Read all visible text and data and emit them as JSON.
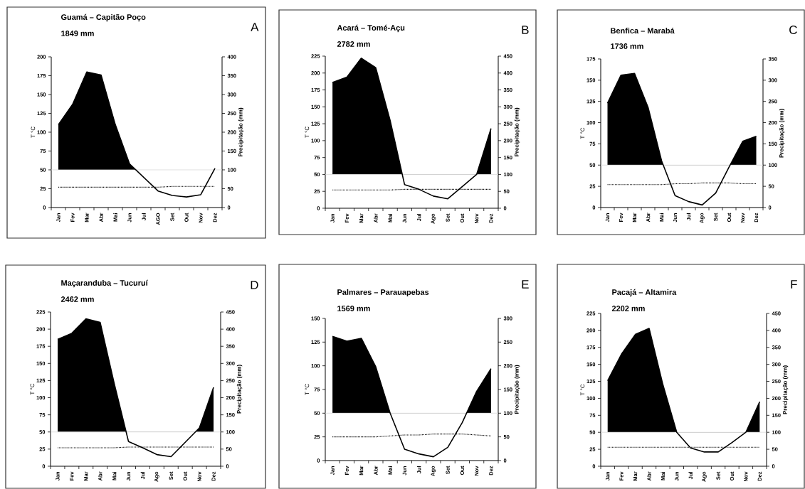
{
  "chart_data": [
    {
      "type": "line",
      "title": "Guamá – Capitão Poço",
      "subtitle": "1849 mm",
      "annotations": [
        "A"
      ],
      "ylabel": "T °C",
      "y2label": "Precipitação (mm)",
      "categories": [
        "Jan",
        "Fev",
        "Mar",
        "Abr",
        "Mai",
        "Jun",
        "Jul",
        "AGO",
        "Set",
        "Out",
        "Nov",
        "Dez"
      ],
      "ylim": [
        0,
        200
      ],
      "yticks": [
        0,
        25,
        50,
        75,
        100,
        125,
        150,
        175,
        200
      ],
      "y2lim": [
        0,
        400
      ],
      "y2ticks": [
        0,
        50,
        100,
        150,
        200,
        250,
        300,
        350,
        400
      ],
      "ref_lines": [
        {
          "axis": "y2",
          "value": 100,
          "color": "#d9d9d9"
        }
      ],
      "series": [
        {
          "type": "area",
          "axis": "y2",
          "color": "#000000",
          "values": [
            220,
            274,
            360,
            352,
            220,
            116,
            80,
            44,
            32,
            28,
            34,
            104
          ]
        },
        {
          "axis": "y",
          "color": "#000000",
          "line_style": "dotted",
          "values": [
            27,
            27,
            27,
            27,
            27,
            27,
            27,
            27,
            28,
            28,
            28,
            28
          ]
        }
      ]
    },
    {
      "type": "line",
      "title": "Acará – Tomé-Açu",
      "subtitle": "2782 mm",
      "annotations": [
        "B"
      ],
      "ylabel": "T °C",
      "y2label": "Precipitação (mm)",
      "categories": [
        "Jan",
        "Fev",
        "Mar",
        "Abr",
        "Mai",
        "Jun",
        "Jul",
        "Ago",
        "Set",
        "Out",
        "Nov",
        "Dez"
      ],
      "ylim": [
        0,
        225
      ],
      "yticks": [
        0,
        25,
        50,
        75,
        100,
        125,
        150,
        175,
        200,
        225
      ],
      "y2lim": [
        0,
        450
      ],
      "y2ticks": [
        0,
        50,
        100,
        150,
        200,
        250,
        300,
        350,
        400,
        450
      ],
      "ref_lines": [
        {
          "axis": "y2",
          "value": 100,
          "color": "#d9d9d9"
        }
      ],
      "series": [
        {
          "type": "area",
          "axis": "y2",
          "color": "#000000",
          "values": [
            372,
            388,
            444,
            416,
            260,
            70,
            56,
            36,
            28,
            64,
            100,
            236
          ]
        },
        {
          "axis": "y",
          "color": "#000000",
          "line_style": "dotted",
          "values": [
            27,
            27,
            27,
            27,
            27,
            28,
            28,
            28,
            28,
            28,
            28,
            28
          ]
        }
      ]
    },
    {
      "type": "line",
      "title": "Benfica – Marabá",
      "subtitle": "1736 mm",
      "annotations": [
        "C"
      ],
      "ylabel": "T °C",
      "y2label": "Precipitação (mm)",
      "categories": [
        "Jan",
        "Fev",
        "Mar",
        "Abr",
        "Mai",
        "Jun",
        "Jul",
        "Ago",
        "Set",
        "Out",
        "Nov",
        "Dez"
      ],
      "ylim": [
        0,
        175
      ],
      "yticks": [
        0,
        25,
        50,
        75,
        100,
        125,
        150,
        175
      ],
      "y2lim": [
        0,
        350
      ],
      "y2ticks": [
        0,
        50,
        100,
        150,
        200,
        250,
        300,
        350
      ],
      "ref_lines": [
        {
          "axis": "y2",
          "value": 100,
          "color": "#d9d9d9"
        }
      ],
      "series": [
        {
          "type": "area",
          "axis": "y2",
          "color": "#000000",
          "values": [
            246,
            312,
            316,
            236,
            110,
            28,
            14,
            6,
            34,
            96,
            156,
            168
          ]
        },
        {
          "axis": "y",
          "color": "#000000",
          "line_style": "dotted",
          "values": [
            27,
            27,
            27,
            27,
            27,
            28,
            28,
            29,
            29,
            29,
            28,
            28
          ]
        }
      ]
    },
    {
      "type": "line",
      "title": "Maçaranduba – Tucuruí",
      "subtitle": "2462 mm",
      "annotations": [
        "D"
      ],
      "ylabel": "T °C",
      "y2label": "Precipitação (mm)",
      "categories": [
        "Jan",
        "Fev",
        "Mar",
        "Abr",
        "Mai",
        "Jun",
        "Jul",
        "Ago",
        "Set",
        "Out",
        "Nov",
        "Dez"
      ],
      "ylim": [
        0,
        225
      ],
      "yticks": [
        0,
        25,
        50,
        75,
        100,
        125,
        150,
        175,
        200,
        225
      ],
      "y2lim": [
        0,
        450
      ],
      "y2ticks": [
        0,
        50,
        100,
        150,
        200,
        250,
        300,
        350,
        400,
        450
      ],
      "ref_lines": [
        {
          "axis": "y2",
          "value": 100,
          "color": "#d9d9d9"
        }
      ],
      "series": [
        {
          "type": "area",
          "axis": "y2",
          "color": "#000000",
          "values": [
            370,
            388,
            430,
            420,
            240,
            72,
            54,
            34,
            28,
            70,
            112,
            230
          ]
        },
        {
          "axis": "y",
          "color": "#000000",
          "line_style": "dotted",
          "values": [
            27,
            27,
            27,
            27,
            27,
            28,
            28,
            28,
            28,
            28,
            28,
            28
          ]
        }
      ]
    },
    {
      "type": "line",
      "title": "Palmares – Parauapebas",
      "subtitle": "1569 mm",
      "annotations": [
        "E"
      ],
      "ylabel": "T °C",
      "y2label": "Precipitação (mm)",
      "categories": [
        "Jan",
        "Fev",
        "Mar",
        "Abr",
        "Mai",
        "Jun",
        "Jul",
        "Ago",
        "Set",
        "Out",
        "Nov",
        "Dez"
      ],
      "ylim": [
        0,
        150
      ],
      "yticks": [
        0,
        25,
        50,
        75,
        100,
        125,
        150
      ],
      "y2lim": [
        0,
        300
      ],
      "y2ticks": [
        0,
        50,
        100,
        150,
        200,
        250,
        300
      ],
      "ref_lines": [
        {
          "axis": "y2",
          "value": 100,
          "color": "#d9d9d9"
        }
      ],
      "series": [
        {
          "type": "area",
          "axis": "y2",
          "color": "#000000",
          "values": [
            262,
            252,
            258,
            198,
            100,
            24,
            14,
            8,
            28,
            80,
            146,
            194
          ]
        },
        {
          "axis": "y",
          "color": "#000000",
          "line_style": "dotted",
          "values": [
            25,
            25,
            25,
            25,
            26,
            27,
            27,
            28,
            28,
            28,
            27,
            26
          ]
        }
      ]
    },
    {
      "type": "line",
      "title": "Pacajá – Altamira",
      "subtitle": "2202 mm",
      "annotations": [
        "F"
      ],
      "ylabel": "T °C",
      "y2label": "Precipitação (mm)",
      "categories": [
        "Jan",
        "Fev",
        "Mar",
        "Abr",
        "Mai",
        "Jun",
        "Jul",
        "Ago",
        "Set",
        "Out",
        "Nov",
        "Dez"
      ],
      "ylim": [
        0,
        225
      ],
      "yticks": [
        0,
        25,
        50,
        75,
        100,
        125,
        150,
        175,
        200,
        225
      ],
      "y2lim": [
        0,
        450
      ],
      "y2ticks": [
        0,
        50,
        100,
        150,
        200,
        250,
        300,
        350,
        400,
        450
      ],
      "ref_lines": [
        {
          "axis": "y2",
          "value": 100,
          "color": "#d9d9d9"
        }
      ],
      "series": [
        {
          "type": "area",
          "axis": "y2",
          "color": "#000000",
          "values": [
            252,
            330,
            388,
            406,
            240,
            100,
            54,
            42,
            42,
            70,
            100,
            190
          ]
        },
        {
          "axis": "y",
          "color": "#000000",
          "line_style": "dotted",
          "values": [
            28,
            28,
            28,
            28,
            28,
            28,
            28,
            28,
            28,
            28,
            28,
            28
          ]
        }
      ]
    }
  ]
}
